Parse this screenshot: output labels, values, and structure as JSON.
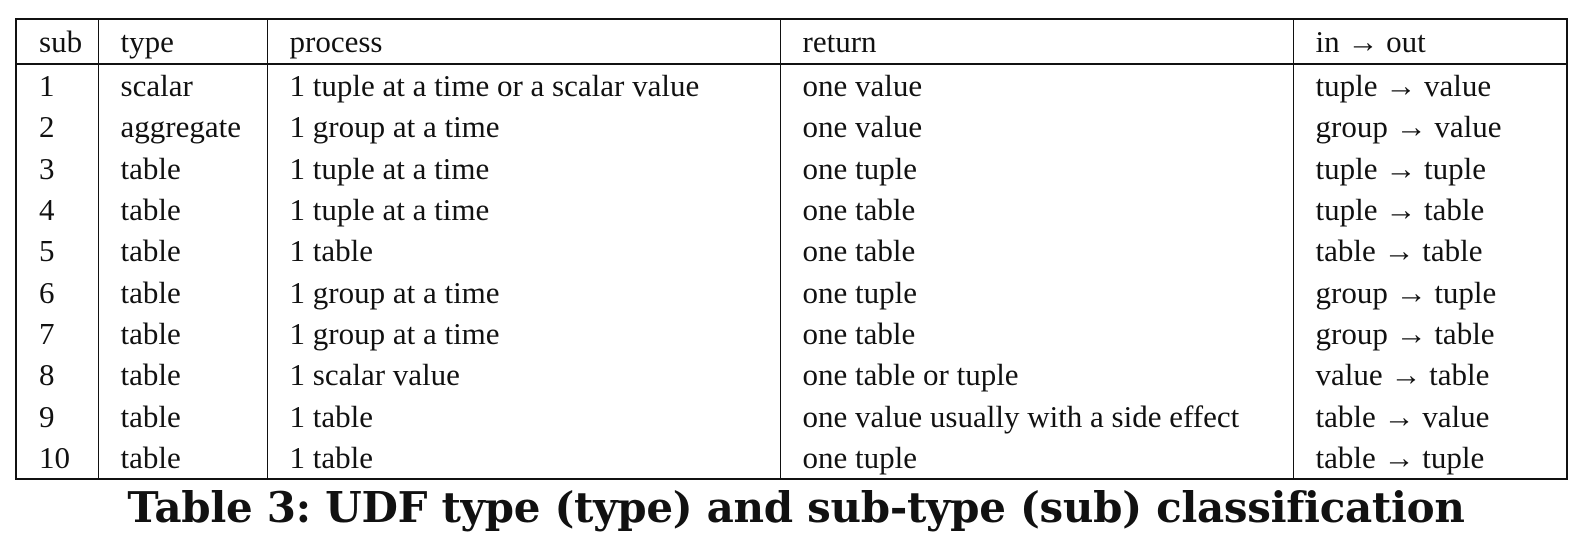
{
  "table": {
    "headers": {
      "sub": "sub",
      "type": "type",
      "process": "process",
      "return": "return",
      "in_out": "in → out"
    },
    "rows": [
      {
        "sub": "1",
        "type": "scalar",
        "process": "1 tuple at a time or a scalar value",
        "return": "one value",
        "in_out": "tuple → value"
      },
      {
        "sub": "2",
        "type": "aggregate",
        "process": "1 group at a time",
        "return": "one value",
        "in_out": "group → value"
      },
      {
        "sub": "3",
        "type": "table",
        "process": "1 tuple at a time",
        "return": "one tuple",
        "in_out": "tuple → tuple"
      },
      {
        "sub": "4",
        "type": "table",
        "process": "1 tuple at a time",
        "return": "one table",
        "in_out": "tuple → table"
      },
      {
        "sub": "5",
        "type": "table",
        "process": "1 table",
        "return": "one table",
        "in_out": "table → table"
      },
      {
        "sub": "6",
        "type": "table",
        "process": "1 group at a time",
        "return": "one tuple",
        "in_out": "group → tuple"
      },
      {
        "sub": "7",
        "type": "table",
        "process": "1 group at a time",
        "return": "one table",
        "in_out": "group → table"
      },
      {
        "sub": "8",
        "type": "table",
        "process": "1 scalar value",
        "return": "one table or tuple",
        "in_out": "value → table"
      },
      {
        "sub": "9",
        "type": "table",
        "process": "1 table",
        "return": "one value usually with a side effect",
        "in_out": "table → value"
      },
      {
        "sub": "10",
        "type": "table",
        "process": "1 table",
        "return": "one tuple",
        "in_out": "table → tuple"
      }
    ]
  },
  "caption": "Table 3: UDF type (type) and sub-type (sub) classification"
}
